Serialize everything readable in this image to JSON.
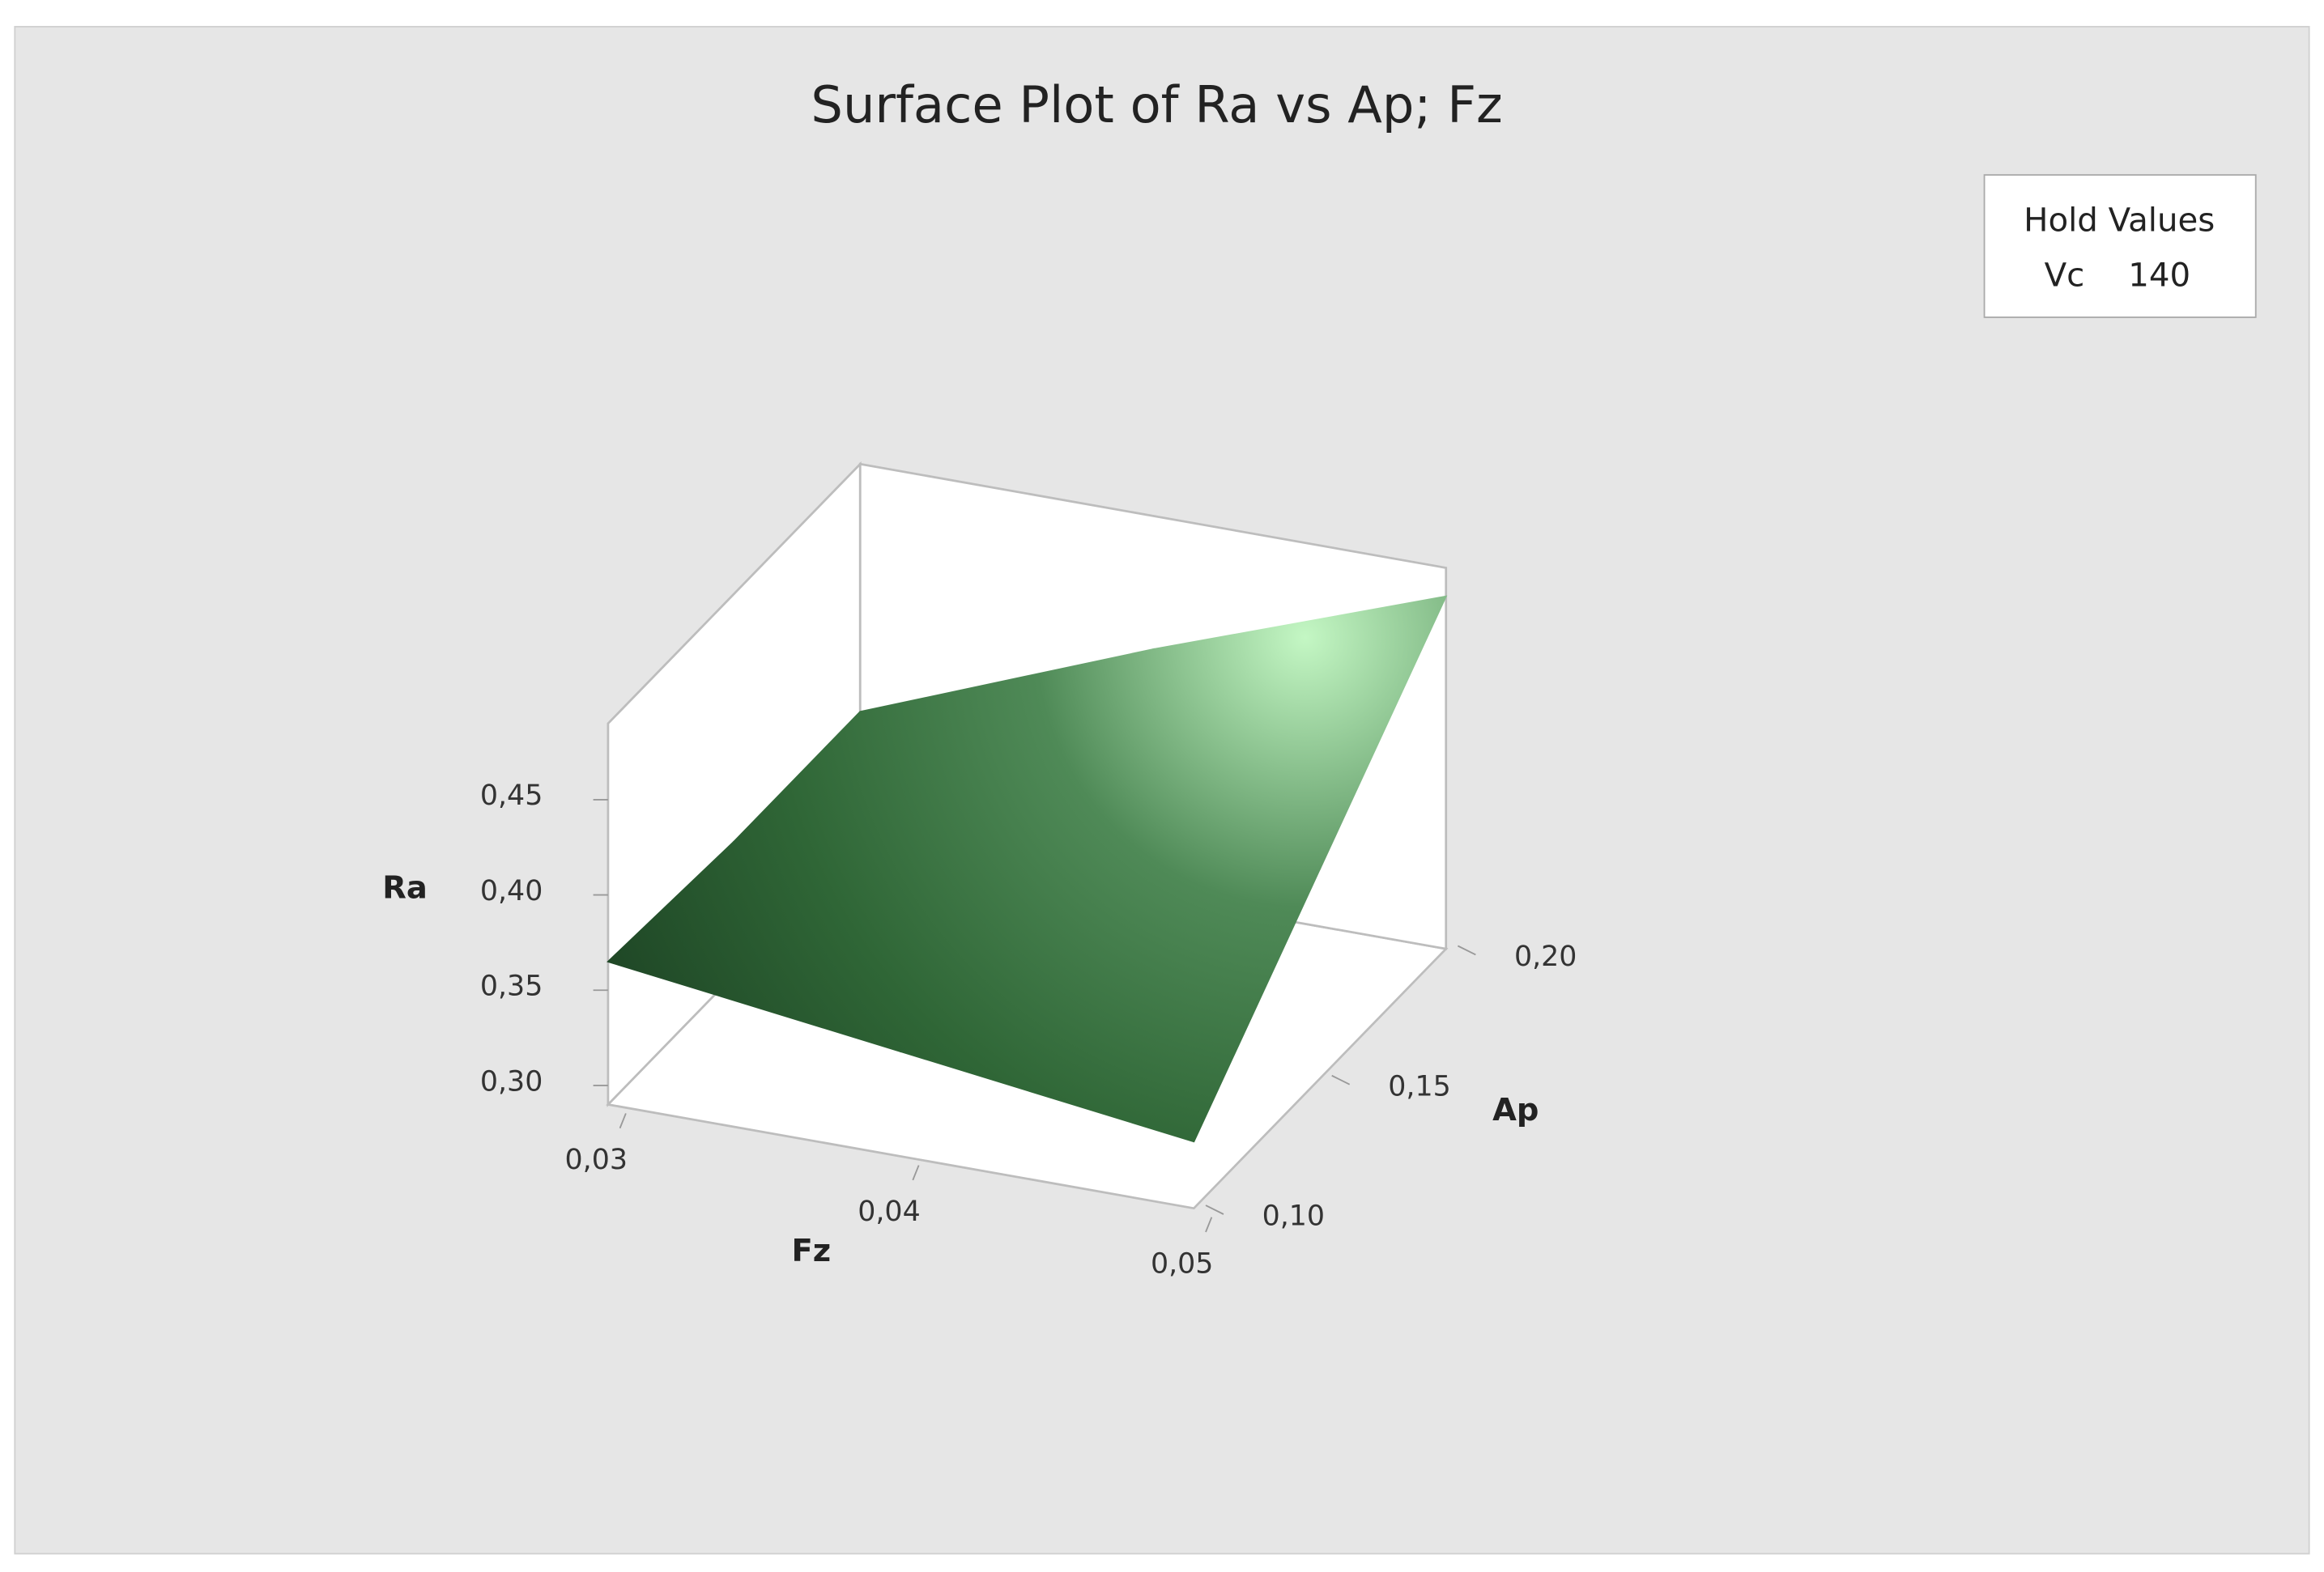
{
  "chart_data": {
    "type": "surface",
    "title": "Surface Plot of Ra vs Ap; Fz",
    "x_label": "Fz",
    "y_label": "Ap",
    "z_label": "Ra",
    "x": [
      0.03,
      0.04,
      0.05
    ],
    "y": [
      0.1,
      0.15,
      0.2
    ],
    "z": [
      [
        0.365,
        0.345,
        0.325
      ],
      [
        0.36,
        0.38,
        0.4
      ],
      [
        0.36,
        0.42,
        0.475
      ]
    ],
    "xlim": [
      0.03,
      0.05
    ],
    "ylim": [
      0.1,
      0.2
    ],
    "zlim": [
      0.29,
      0.49
    ],
    "xticks": [
      {
        "value": 0.03,
        "label": "0,03"
      },
      {
        "value": 0.04,
        "label": "0,04"
      },
      {
        "value": 0.05,
        "label": "0,05"
      }
    ],
    "yticks": [
      {
        "value": 0.1,
        "label": "0,10"
      },
      {
        "value": 0.15,
        "label": "0,15"
      },
      {
        "value": 0.2,
        "label": "0,20"
      }
    ],
    "zticks": [
      {
        "value": 0.3,
        "label": "0,30"
      },
      {
        "value": 0.35,
        "label": "0,35"
      },
      {
        "value": 0.4,
        "label": "0,40"
      },
      {
        "value": 0.45,
        "label": "0,45"
      }
    ],
    "hold_values": {
      "title": "Hold Values",
      "name": "Vc",
      "value": 140
    }
  }
}
